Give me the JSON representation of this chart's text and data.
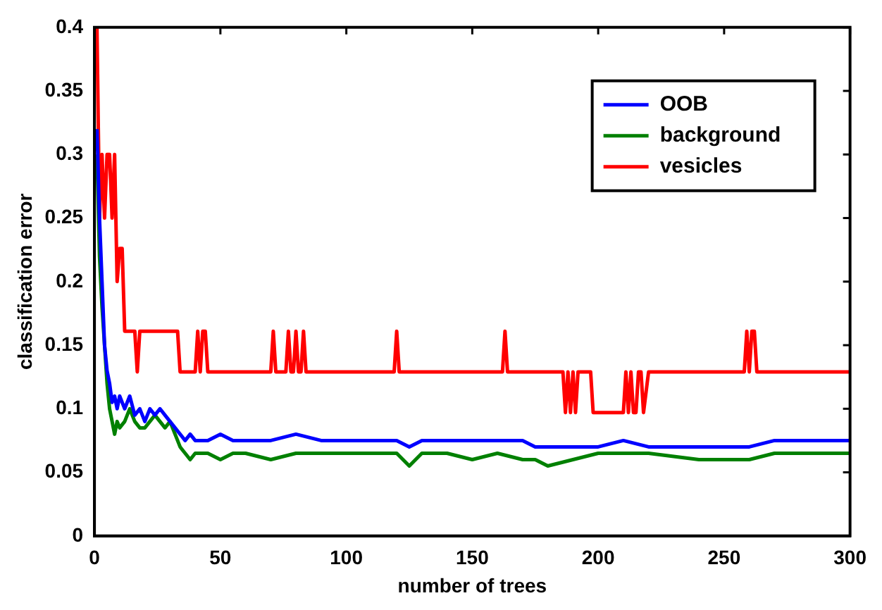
{
  "chart_data": {
    "type": "line",
    "xlabel": "number of trees",
    "ylabel": "classification error",
    "xlim": [
      0,
      300
    ],
    "xticks": [
      0,
      50,
      100,
      150,
      200,
      250,
      300
    ],
    "ylim": [
      0,
      0.4
    ],
    "yticks": [
      0,
      0.05,
      0.1,
      0.15,
      0.2,
      0.25,
      0.3,
      0.35,
      0.4
    ],
    "grid": false,
    "legend": "top right",
    "marker": "none",
    "line_style": "solid",
    "series": [
      {
        "name": "OOB",
        "color": "#0000ff",
        "x": [
          1,
          2,
          3,
          4,
          5,
          6,
          7,
          8,
          9,
          10,
          12,
          14,
          16,
          18,
          20,
          22,
          24,
          26,
          28,
          30,
          32,
          34,
          36,
          38,
          40,
          45,
          50,
          55,
          60,
          70,
          80,
          90,
          100,
          110,
          120,
          125,
          130,
          140,
          150,
          160,
          170,
          175,
          180,
          190,
          200,
          210,
          220,
          240,
          260,
          270,
          300
        ],
        "values": [
          0.32,
          0.25,
          0.2,
          0.15,
          0.13,
          0.12,
          0.105,
          0.11,
          0.1,
          0.11,
          0.1,
          0.11,
          0.095,
          0.1,
          0.09,
          0.1,
          0.095,
          0.1,
          0.095,
          0.09,
          0.085,
          0.08,
          0.075,
          0.08,
          0.075,
          0.075,
          0.08,
          0.075,
          0.075,
          0.075,
          0.08,
          0.075,
          0.075,
          0.075,
          0.075,
          0.07,
          0.075,
          0.075,
          0.075,
          0.075,
          0.075,
          0.07,
          0.07,
          0.07,
          0.07,
          0.075,
          0.07,
          0.07,
          0.07,
          0.075,
          0.075
        ]
      },
      {
        "name": "background",
        "color": "#008000",
        "x": [
          1,
          2,
          3,
          4,
          5,
          6,
          7,
          8,
          9,
          10,
          12,
          14,
          16,
          18,
          20,
          22,
          24,
          26,
          28,
          30,
          32,
          34,
          36,
          38,
          40,
          45,
          50,
          55,
          60,
          70,
          80,
          90,
          100,
          110,
          120,
          125,
          130,
          140,
          150,
          160,
          170,
          175,
          180,
          190,
          200,
          210,
          220,
          240,
          260,
          270,
          300
        ],
        "values": [
          0.3,
          0.22,
          0.18,
          0.15,
          0.12,
          0.1,
          0.09,
          0.08,
          0.09,
          0.085,
          0.09,
          0.1,
          0.09,
          0.085,
          0.085,
          0.09,
          0.095,
          0.09,
          0.085,
          0.09,
          0.08,
          0.07,
          0.065,
          0.06,
          0.065,
          0.065,
          0.06,
          0.065,
          0.065,
          0.06,
          0.065,
          0.065,
          0.065,
          0.065,
          0.065,
          0.055,
          0.065,
          0.065,
          0.06,
          0.065,
          0.06,
          0.06,
          0.055,
          0.06,
          0.065,
          0.065,
          0.065,
          0.06,
          0.06,
          0.065,
          0.065
        ]
      },
      {
        "name": "vesicles",
        "color": "#ff0000",
        "x": [
          1,
          2,
          3,
          4,
          5,
          6,
          7,
          8,
          9,
          10,
          11,
          12,
          13,
          16,
          17,
          18,
          19,
          33,
          34,
          40,
          41,
          42,
          43,
          44,
          45,
          70,
          71,
          72,
          76,
          77,
          78,
          79,
          80,
          81,
          82,
          83,
          84,
          119,
          120,
          121,
          162,
          163,
          164,
          186,
          187,
          188,
          189,
          190,
          191,
          192,
          193,
          197,
          198,
          210,
          211,
          212,
          213,
          214,
          215,
          216,
          217,
          218,
          220,
          258,
          259,
          260,
          261,
          262,
          263,
          300
        ],
        "values": [
          0.4,
          0.25,
          0.3,
          0.25,
          0.3,
          0.3,
          0.25,
          0.3,
          0.2,
          0.226,
          0.226,
          0.161,
          0.161,
          0.161,
          0.129,
          0.161,
          0.161,
          0.161,
          0.129,
          0.129,
          0.161,
          0.129,
          0.161,
          0.161,
          0.129,
          0.129,
          0.161,
          0.129,
          0.129,
          0.161,
          0.129,
          0.129,
          0.161,
          0.129,
          0.129,
          0.161,
          0.129,
          0.129,
          0.161,
          0.129,
          0.129,
          0.161,
          0.129,
          0.129,
          0.097,
          0.129,
          0.097,
          0.129,
          0.097,
          0.129,
          0.129,
          0.129,
          0.097,
          0.097,
          0.129,
          0.097,
          0.129,
          0.097,
          0.097,
          0.129,
          0.129,
          0.097,
          0.129,
          0.129,
          0.161,
          0.129,
          0.161,
          0.161,
          0.129,
          0.129
        ]
      }
    ]
  }
}
